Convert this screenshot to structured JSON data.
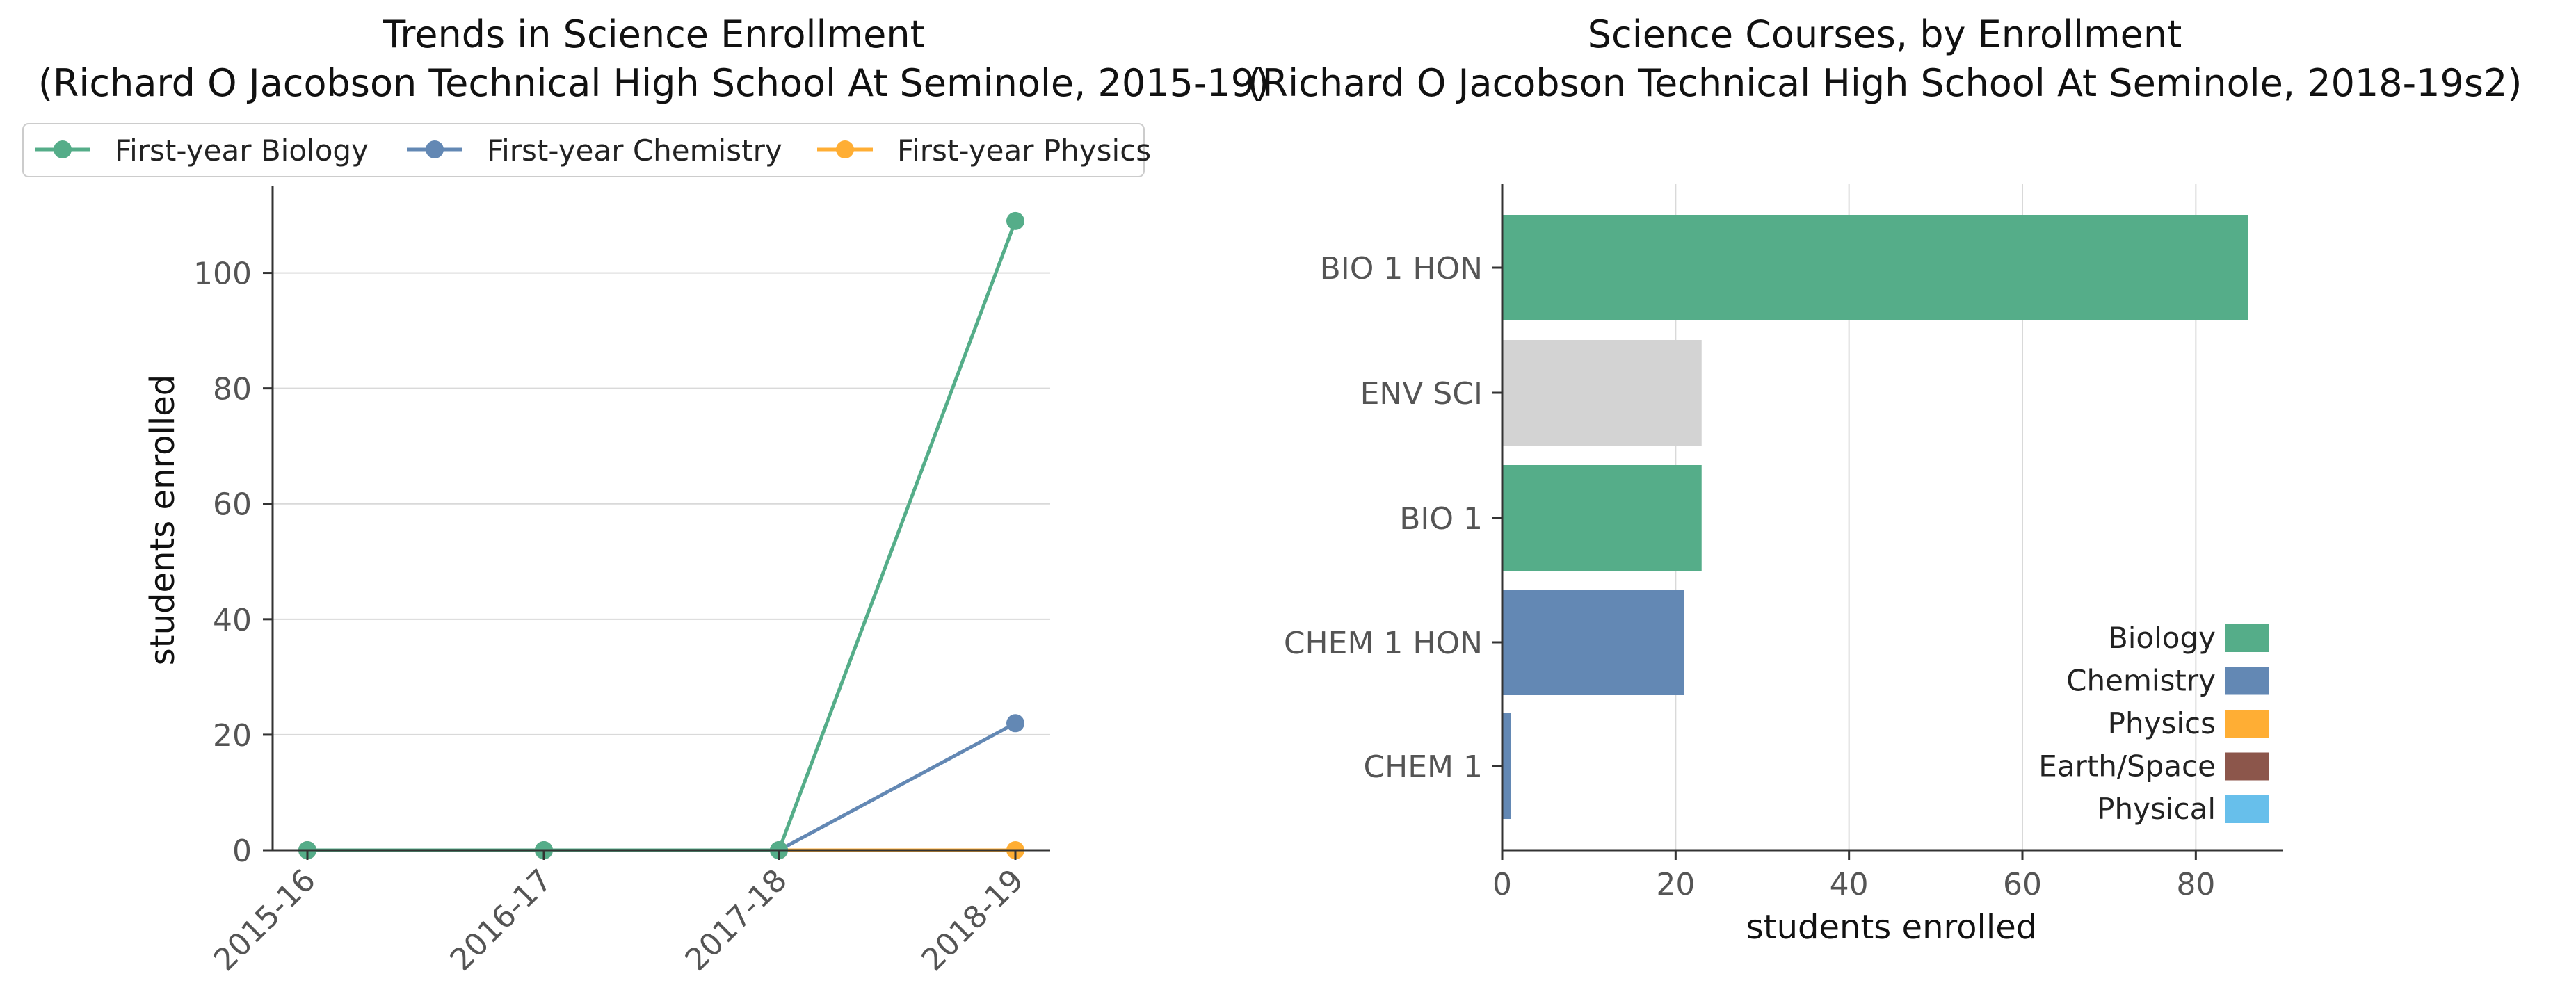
{
  "colors": {
    "biology": "#55ad89",
    "chemistry": "#6388b4",
    "physics": "#ffae34",
    "earth_space": "#8c564b",
    "physical": "#67bfeb",
    "other": "#d3d3d3"
  },
  "chart_data": [
    {
      "type": "line",
      "title": "Trends in Science Enrollment",
      "subtitle": "(Richard O Jacobson Technical High School At Seminole, 2015-19)",
      "xlabel": "",
      "ylabel": "students enrolled",
      "categories": [
        "2015-16",
        "2016-17",
        "2017-18",
        "2018-19"
      ],
      "ylim": [
        0,
        115
      ],
      "yticks": [
        0,
        20,
        40,
        60,
        80,
        100
      ],
      "grid": "horizontal",
      "legend_position": "top",
      "series": [
        {
          "name": "First-year Biology",
          "color": "#55ad89",
          "values": [
            0,
            0,
            0,
            109
          ]
        },
        {
          "name": "First-year Chemistry",
          "color": "#6388b4",
          "values": [
            0,
            0,
            0,
            22
          ]
        },
        {
          "name": "First-year Physics",
          "color": "#ffae34",
          "values": [
            0,
            0,
            0,
            0
          ]
        }
      ]
    },
    {
      "type": "bar",
      "orientation": "horizontal",
      "title": "Science Courses, by Enrollment",
      "subtitle": "(Richard O Jacobson Technical High School At Seminole, 2018-19s2)",
      "xlabel": "students enrolled",
      "ylabel": "",
      "xlim": [
        0,
        90
      ],
      "xticks": [
        0,
        20,
        40,
        60,
        80
      ],
      "grid": "vertical",
      "legend_position": "bottom-right",
      "categories": [
        "BIO 1 HON",
        "ENV SCI",
        "BIO 1",
        "CHEM 1 HON",
        "CHEM 1"
      ],
      "values": [
        86,
        23,
        23,
        21,
        1
      ],
      "bar_colors": [
        "#55ad89",
        "#d3d3d3",
        "#55ad89",
        "#6388b4",
        "#6388b4"
      ],
      "legend": [
        {
          "name": "Biology",
          "color": "#55ad89"
        },
        {
          "name": "Chemistry",
          "color": "#6388b4"
        },
        {
          "name": "Physics",
          "color": "#ffae34"
        },
        {
          "name": "Earth/Space",
          "color": "#8c564b"
        },
        {
          "name": "Physical",
          "color": "#67bfeb"
        }
      ]
    }
  ]
}
